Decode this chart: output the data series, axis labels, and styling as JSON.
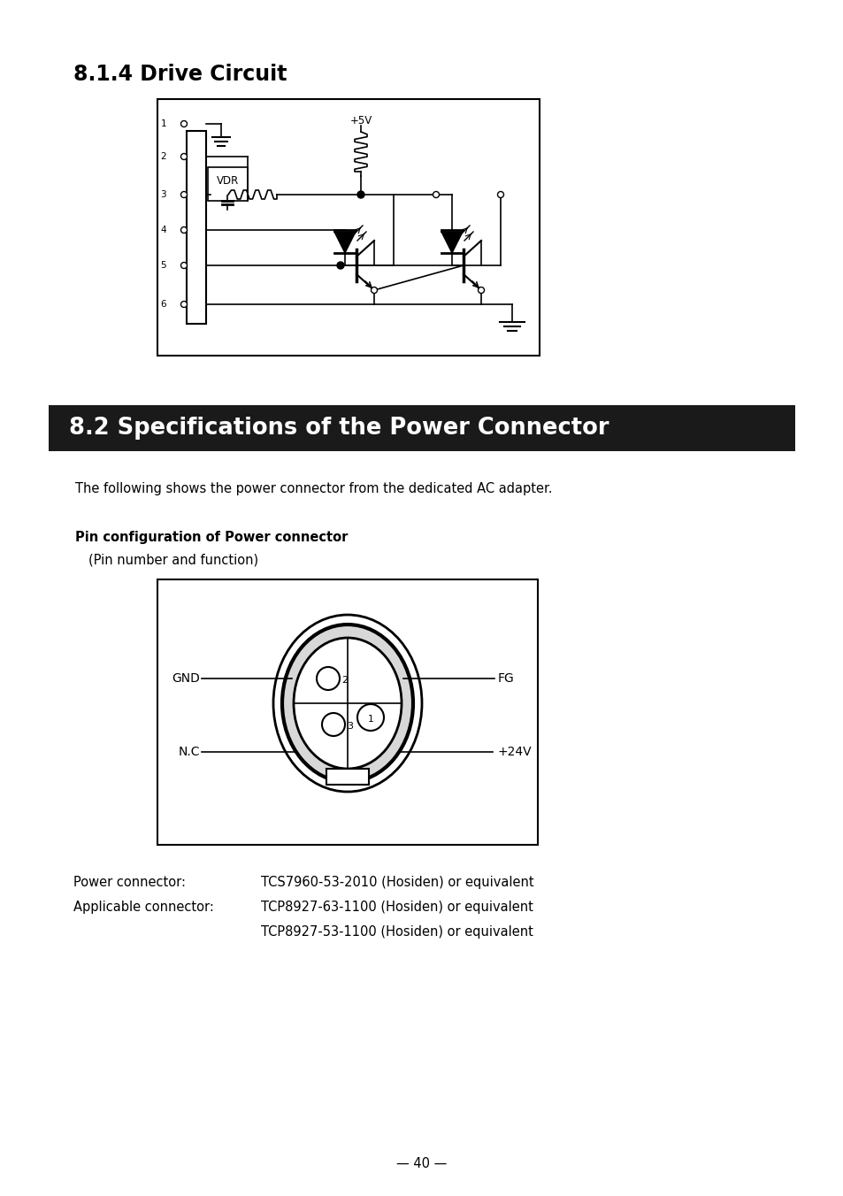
{
  "title_814": "8.1.4 Drive Circuit",
  "title_82": "8.2 Specifications of the Power Connector",
  "para_82": "The following shows the power connector from the dedicated AC adapter.",
  "pin_config_bold": "Pin configuration of Power connector",
  "pin_config_normal": "  (Pin number and function)",
  "power_connector_label": "Power connector:",
  "power_connector_value": "TCS7960-53-2010 (Hosiden) or equivalent",
  "applicable_connector_label": "Applicable connector:",
  "applicable_connector_value1": "TCP8927-63-1100 (Hosiden) or equivalent",
  "applicable_connector_value2": "TCP8927-53-1100 (Hosiden) or equivalent",
  "page_number": "— 40 —",
  "bg_color": "#ffffff",
  "text_color": "#000000",
  "header_bg": "#1a1a1a",
  "header_text": "#ffffff"
}
